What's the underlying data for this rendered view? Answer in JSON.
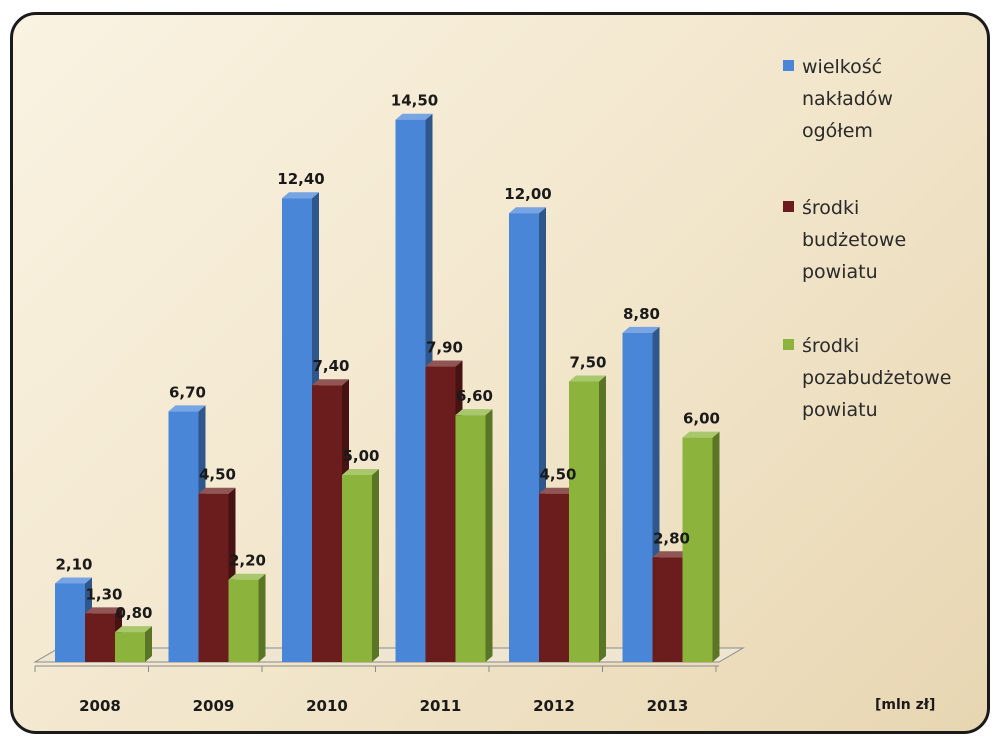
{
  "chart_data": {
    "type": "bar",
    "categories": [
      "2008",
      "2009",
      "2010",
      "2011",
      "2012",
      "2013"
    ],
    "series": [
      {
        "name": "wielkość nakładów ogółem",
        "name_lines": [
          "wielkość",
          "nakładów",
          "ogółem"
        ],
        "color": "#4a86d8",
        "values": [
          2.1,
          6.7,
          12.4,
          14.5,
          12.0,
          8.8
        ],
        "labels": [
          "2,10",
          "6,70",
          "12,40",
          "14,50",
          "12,00",
          "8,80"
        ]
      },
      {
        "name": "środki budżetowe powiatu",
        "name_lines": [
          "środki",
          "budżetowe",
          "powiatu"
        ],
        "color": "#6b1c1c",
        "values": [
          1.3,
          4.5,
          7.4,
          7.9,
          4.5,
          2.8
        ],
        "labels": [
          "1,30",
          "4,50",
          "7,40",
          "7,90",
          "4,50",
          "2,80"
        ]
      },
      {
        "name": "środki pozabudżetowe powiatu",
        "name_lines": [
          "środki",
          "pozabudżetowe",
          "powiatu"
        ],
        "color": "#8cb43c",
        "values": [
          0.8,
          2.2,
          5.0,
          6.6,
          7.5,
          6.0
        ],
        "labels": [
          "0,80",
          "2,20",
          "5,00",
          "6,60",
          "7,50",
          "6,00"
        ]
      }
    ],
    "unit": "[mln zł]",
    "ylim": [
      0,
      15
    ],
    "grid": false,
    "legend": "right"
  }
}
